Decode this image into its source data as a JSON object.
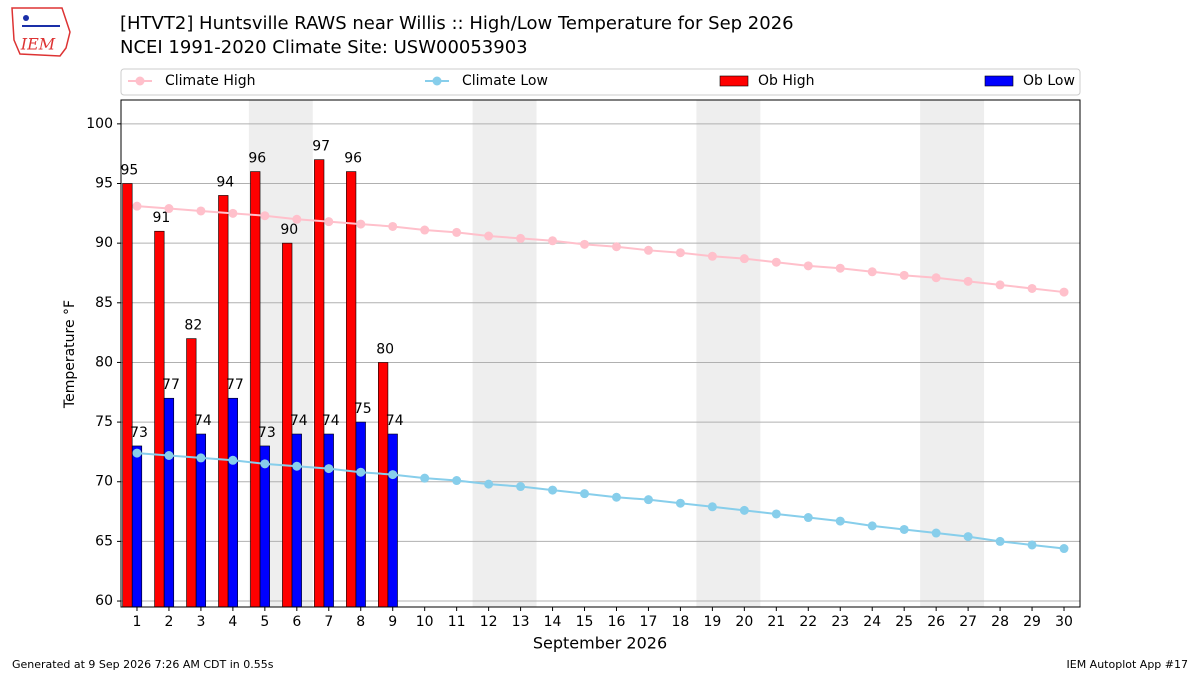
{
  "logo_text": "IEM",
  "footer_left": "Generated at 9 Sep 2026 7:26 AM CDT in 0.55s",
  "footer_right": "IEM Autoplot App #17",
  "chart_data": {
    "type": "bar_line",
    "title": "[HTVT2] Huntsville RAWS near Willis :: High/Low Temperature for Sep 2026",
    "subtitle": "NCEI 1991-2020 Climate Site: USW00053903",
    "x_label": "September 2026",
    "y_label": "Temperature °F",
    "x": [
      1,
      2,
      3,
      4,
      5,
      6,
      7,
      8,
      9,
      10,
      11,
      12,
      13,
      14,
      15,
      16,
      17,
      18,
      19,
      20,
      21,
      22,
      23,
      24,
      25,
      26,
      27,
      28,
      29,
      30
    ],
    "xlim": [
      0.5,
      30.5
    ],
    "xticks": [
      1,
      2,
      3,
      4,
      5,
      6,
      7,
      8,
      9,
      10,
      11,
      12,
      13,
      14,
      15,
      16,
      17,
      18,
      19,
      20,
      21,
      22,
      23,
      24,
      25,
      26,
      27,
      28,
      29,
      30
    ],
    "ylim": [
      59.5,
      102
    ],
    "yticks": [
      60,
      65,
      70,
      75,
      80,
      85,
      90,
      95,
      100
    ],
    "grid": true,
    "shaded_ranges": [
      [
        4.5,
        6.5
      ],
      [
        11.5,
        13.5
      ],
      [
        18.5,
        20.5
      ],
      [
        25.5,
        27.5
      ]
    ],
    "series": [
      {
        "name": "Climate High",
        "kind": "line",
        "color": "#ffc0cb",
        "values": [
          93.1,
          92.9,
          92.7,
          92.5,
          92.3,
          92.0,
          91.8,
          91.6,
          91.4,
          91.1,
          90.9,
          90.6,
          90.4,
          90.2,
          89.9,
          89.7,
          89.4,
          89.2,
          88.9,
          88.7,
          88.4,
          88.1,
          87.9,
          87.6,
          87.3,
          87.1,
          86.8,
          86.5,
          86.2,
          85.9
        ]
      },
      {
        "name": "Climate Low",
        "kind": "line",
        "color": "#87ceeb",
        "values": [
          72.4,
          72.2,
          72.0,
          71.8,
          71.5,
          71.3,
          71.1,
          70.8,
          70.6,
          70.3,
          70.1,
          69.8,
          69.6,
          69.3,
          69.0,
          68.7,
          68.5,
          68.2,
          67.9,
          67.6,
          67.3,
          67.0,
          66.7,
          66.3,
          66.0,
          65.7,
          65.4,
          65.0,
          64.7,
          64.4
        ]
      },
      {
        "name": "Ob High",
        "kind": "bar",
        "color": "#ff0000",
        "values": [
          95,
          91,
          82,
          94,
          96,
          90,
          97,
          96,
          80,
          null,
          null,
          null,
          null,
          null,
          null,
          null,
          null,
          null,
          null,
          null,
          null,
          null,
          null,
          null,
          null,
          null,
          null,
          null,
          null,
          null
        ]
      },
      {
        "name": "Ob Low",
        "kind": "bar",
        "color": "#0000ff",
        "values": [
          73,
          77,
          74,
          77,
          73,
          74,
          74,
          75,
          74,
          null,
          null,
          null,
          null,
          null,
          null,
          null,
          null,
          null,
          null,
          null,
          null,
          null,
          null,
          null,
          null,
          null,
          null,
          null,
          null,
          null
        ]
      }
    ]
  }
}
